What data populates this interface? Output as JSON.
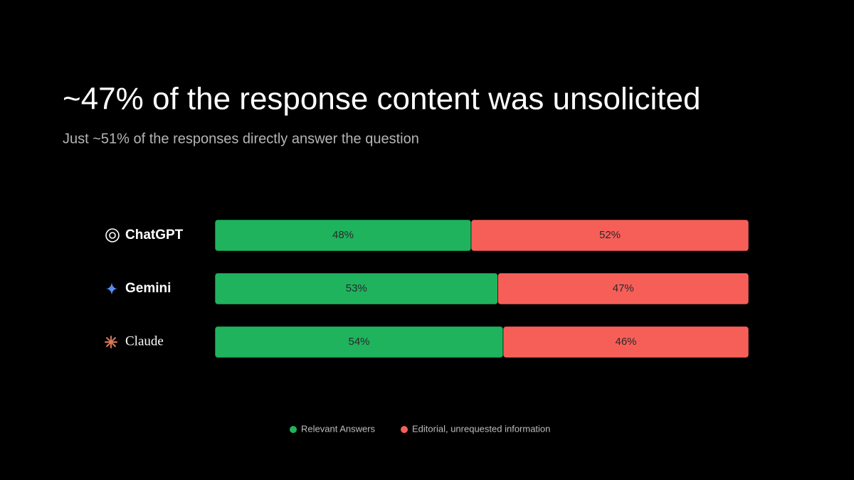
{
  "chart_data": {
    "type": "stacked-bar-horizontal",
    "title": "~47% of the response content was unsolicited",
    "subtitle": "Just ~51% of the responses directly answer the question",
    "categories": [
      "ChatGPT",
      "Gemini",
      "Claude"
    ],
    "series": [
      {
        "name": "Relevant Answers",
        "color": "#1fb35e",
        "values": [
          48,
          53,
          54
        ],
        "value_labels": [
          "48%",
          "53%",
          "54%"
        ]
      },
      {
        "name": "Editorial, unrequested information",
        "color": "#f65f58",
        "values": [
          52,
          47,
          46
        ],
        "value_labels": [
          "52%",
          "47%",
          "46%"
        ]
      }
    ],
    "xlim": [
      0,
      100
    ],
    "legend": "bottom"
  }
}
